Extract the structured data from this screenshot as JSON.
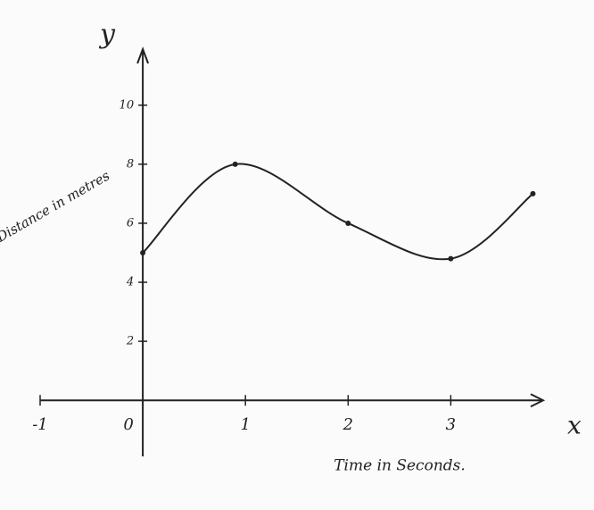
{
  "chart_data": {
    "type": "line",
    "y_axis_symbol": "y",
    "x_axis_symbol": "x",
    "ylabel": "Distance in metres",
    "xlabel": "Time in Seconds.",
    "x": [
      0,
      0.9,
      2,
      3,
      3.8
    ],
    "values": [
      5,
      8,
      6,
      4.8,
      7
    ],
    "color": "#222222",
    "xlim": [
      -1,
      3.9
    ],
    "ylim": [
      -1.9,
      11.9
    ],
    "xticks": [
      -1,
      0,
      1,
      2,
      3
    ],
    "yticks": [
      2,
      4,
      6,
      8,
      10
    ],
    "grid": false
  }
}
